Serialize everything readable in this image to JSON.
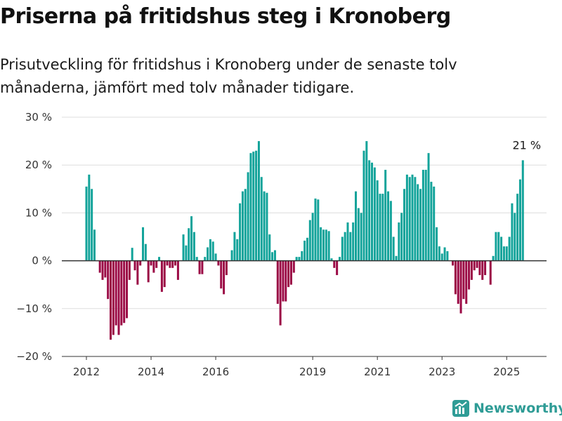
{
  "header": {
    "title": "Priserna på fritidshus steg i Kronoberg",
    "subtitle": "Prisutveckling för fritidshus i Kronoberg under de senaste tolv månaderna, jämfört med tolv månader tidigare."
  },
  "brand": {
    "name": "Newsworthy",
    "icon": "newsworthy-logo-icon",
    "color": "#2f9c96"
  },
  "chart_data": {
    "type": "bar",
    "title": "Priserna på fritidshus steg i Kronoberg",
    "subtitle": "Prisutveckling för fritidshus i Kronoberg under de senaste tolv månaderna, jämfört med tolv månader tidigare.",
    "xlabel": "",
    "ylabel": "",
    "x_start": "2012-01",
    "x_ticks": [
      {
        "label": "2012",
        "month": "2012-01"
      },
      {
        "label": "2014",
        "month": "2014-01"
      },
      {
        "label": "2016",
        "month": "2016-01"
      },
      {
        "label": "2019",
        "month": "2019-01"
      },
      {
        "label": "2021",
        "month": "2021-01"
      },
      {
        "label": "2023",
        "month": "2023-01"
      },
      {
        "label": "2025",
        "month": "2025-01"
      }
    ],
    "y_ticks": [
      {
        "label": "30 %",
        "value": 30
      },
      {
        "label": "20 %",
        "value": 20
      },
      {
        "label": "10 %",
        "value": 10
      },
      {
        "label": "0 %",
        "value": 0
      },
      {
        "label": "−10 %",
        "value": -10
      },
      {
        "label": "−20 %",
        "value": -20
      }
    ],
    "ylim": [
      -20,
      30
    ],
    "grid": true,
    "colors": {
      "positive": "#12a39a",
      "negative": "#9b0a45",
      "grid": "#dddddd",
      "zero_line": "#333333"
    },
    "annotation": {
      "text": "21 %",
      "month": "2025-08",
      "value": 21
    },
    "values": [
      15.5,
      18,
      15,
      6.5,
      null,
      -2.5,
      -4,
      -3.5,
      -8,
      -16.5,
      -15.5,
      -13.5,
      -15.5,
      -13.5,
      -13,
      -12,
      -4,
      2.7,
      -2,
      -5,
      -1,
      7,
      3.5,
      -4.5,
      -1,
      -2.5,
      -1.5,
      0.8,
      -6.5,
      -5.5,
      -1,
      -1.5,
      -1.5,
      -1,
      -4,
      null,
      5.5,
      3.2,
      6.8,
      9.3,
      6,
      0.8,
      -2.8,
      -2.8,
      0.8,
      2.8,
      4.5,
      4,
      1.5,
      -1,
      -5.8,
      -7,
      -3,
      null,
      2.2,
      6,
      4.5,
      12,
      14.5,
      15,
      18.5,
      22.5,
      22.8,
      23,
      25,
      17.5,
      14.5,
      14.2,
      5.5,
      1.8,
      2.2,
      -9,
      -13.5,
      -8.5,
      -8.5,
      -5.5,
      -5,
      -2.5,
      0.8,
      0.8,
      2,
      4.2,
      4.8,
      8.5,
      10,
      13,
      12.8,
      7,
      6.5,
      6.5,
      6.2,
      0.5,
      -1.5,
      -3,
      0.8,
      5,
      6,
      8,
      6,
      8,
      14.5,
      11,
      10,
      23,
      25,
      21,
      20.5,
      19.5,
      16.8,
      14,
      14,
      19,
      14.5,
      12.5,
      5,
      1,
      8,
      10,
      15,
      18,
      17.5,
      18,
      17.5,
      16,
      15,
      19,
      19,
      22.5,
      16.5,
      15.5,
      7,
      3,
      1.5,
      2.8,
      2,
      null,
      -1,
      -7,
      -9,
      -11,
      -8,
      -9,
      -6,
      -4,
      -2,
      -1.5,
      -3,
      -4,
      -3,
      null,
      -5,
      1,
      6,
      6,
      5,
      3,
      3,
      5,
      12,
      10,
      14,
      17,
      21
    ]
  }
}
